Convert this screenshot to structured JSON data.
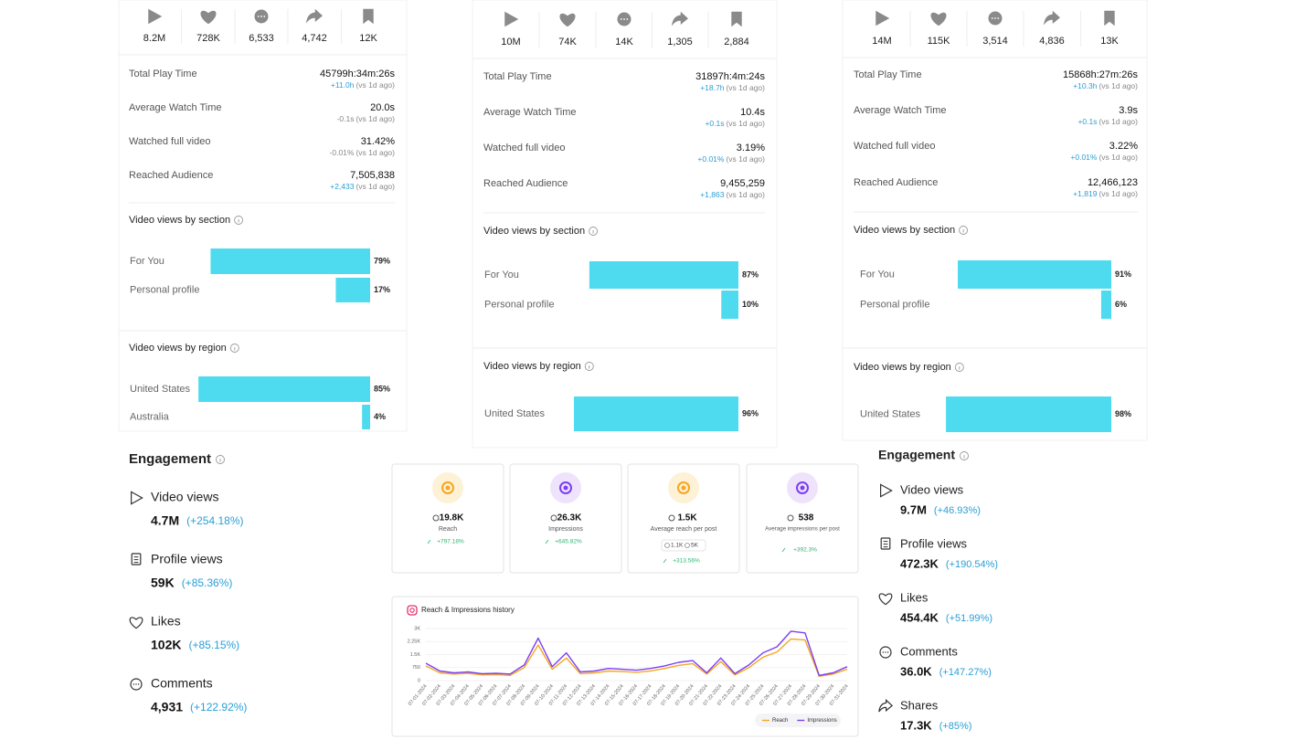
{
  "panels": [
    {
      "counts": [
        "8.2M",
        "728K",
        "6,533",
        "4,742",
        "12K"
      ],
      "metrics": [
        {
          "label": "Total Play Time",
          "value": "45799h:34m:26s",
          "change": "+11.0h",
          "note": "(vs 1d ago)"
        },
        {
          "label": "Average Watch Time",
          "value": "20.0s",
          "change": "-0.1s",
          "note": "(vs 1d ago)"
        },
        {
          "label": "Watched full video",
          "value": "31.42%",
          "change": "-0.01%",
          "note": "(vs 1d ago)"
        },
        {
          "label": "Reached Audience",
          "value": "7,505,838",
          "change": "+2,433",
          "note": "(vs 1d ago)"
        }
      ],
      "section": {
        "title": "Video views by section",
        "categories": [
          "For You",
          "Personal profile"
        ],
        "values": [
          79,
          17
        ],
        "value_labels": [
          "79%",
          "17%"
        ]
      },
      "region": {
        "title": "Video views by region",
        "categories": [
          "United States",
          "Australia"
        ],
        "values": [
          85,
          4
        ],
        "value_labels": [
          "85%",
          "4%"
        ]
      }
    },
    {
      "counts": [
        "10M",
        "74K",
        "14K",
        "1,305",
        "2,884"
      ],
      "metrics": [
        {
          "label": "Total Play Time",
          "value": "31897h:4m:24s",
          "change": "+18.7h",
          "note": "(vs 1d ago)"
        },
        {
          "label": "Average Watch Time",
          "value": "10.4s",
          "change": "+0.1s",
          "note": "(vs 1d ago)"
        },
        {
          "label": "Watched full video",
          "value": "3.19%",
          "change": "+0.01%",
          "note": "(vs 1d ago)"
        },
        {
          "label": "Reached Audience",
          "value": "9,455,259",
          "change": "+1,863",
          "note": "(vs 1d ago)"
        }
      ],
      "section": {
        "title": "Video views by section",
        "categories": [
          "For You",
          "Personal profile"
        ],
        "values": [
          87,
          10
        ],
        "value_labels": [
          "87%",
          "10%"
        ]
      },
      "region": {
        "title": "Video views by region",
        "categories": [
          "United States"
        ],
        "values": [
          96
        ],
        "value_labels": [
          "96%"
        ]
      }
    },
    {
      "counts": [
        "14M",
        "115K",
        "3,514",
        "4,836",
        "13K"
      ],
      "metrics": [
        {
          "label": "Total Play Time",
          "value": "15868h:27m:26s",
          "change": "+10.3h",
          "note": "(vs 1d ago)"
        },
        {
          "label": "Average Watch Time",
          "value": "3.9s",
          "change": "+0.1s",
          "note": "(vs 1d ago)"
        },
        {
          "label": "Watched full video",
          "value": "3.22%",
          "change": "+0.01%",
          "note": "(vs 1d ago)"
        },
        {
          "label": "Reached Audience",
          "value": "12,466,123",
          "change": "+1,819",
          "note": "(vs 1d ago)"
        }
      ],
      "section": {
        "title": "Video views by section",
        "categories": [
          "For You",
          "Personal profile"
        ],
        "values": [
          91,
          6
        ],
        "value_labels": [
          "91%",
          "6%"
        ]
      },
      "region": {
        "title": "Video views by region",
        "categories": [
          "United States"
        ],
        "values": [
          98
        ],
        "value_labels": [
          "98%"
        ]
      }
    }
  ],
  "engagement_left": {
    "title": "Engagement",
    "items": [
      {
        "label": "Video views",
        "value": "4.7M",
        "change": "(+254.18%)"
      },
      {
        "label": "Profile views",
        "value": "59K",
        "change": "(+85.36%)"
      },
      {
        "label": "Likes",
        "value": "102K",
        "change": "(+85.15%)"
      },
      {
        "label": "Comments",
        "value": "4,931",
        "change": "(+122.92%)"
      }
    ]
  },
  "engagement_right": {
    "title": "Engagement",
    "items": [
      {
        "label": "Video views",
        "value": "9.7M",
        "change": "(+46.93%)"
      },
      {
        "label": "Profile views",
        "value": "472.3K",
        "change": "(+190.54%)"
      },
      {
        "label": "Likes",
        "value": "454.4K",
        "change": "(+51.99%)"
      },
      {
        "label": "Comments",
        "value": "36.0K",
        "change": "(+147.27%)"
      },
      {
        "label": "Shares",
        "value": "17.3K",
        "change": "(+85%)"
      }
    ]
  },
  "cards": [
    {
      "value": "19.8K",
      "label": "Reach",
      "change": "+797.18%"
    },
    {
      "value": "26.3K",
      "label": "Impressions",
      "change": "+645.82%"
    },
    {
      "value": "1.5K",
      "label": "Average reach per post",
      "sub": [
        "1.1K",
        "5K"
      ],
      "change": "+313.56%"
    },
    {
      "value": "538",
      "label": "Average impressions per post",
      "change": "+392.3%"
    }
  ],
  "chart_data": {
    "type": "line",
    "title": "Reach & Impressions history",
    "categories": [
      "07-01-2024",
      "07-02-2024",
      "07-03-2024",
      "07-04-2024",
      "07-05-2024",
      "07-06-2024",
      "07-07-2024",
      "07-08-2024",
      "07-09-2024",
      "07-10-2024",
      "07-11-2024",
      "07-12-2024",
      "07-13-2024",
      "07-14-2024",
      "07-15-2024",
      "07-16-2024",
      "07-17-2024",
      "07-18-2024",
      "07-19-2024",
      "07-20-2024",
      "07-21-2024",
      "07-22-2024",
      "07-23-2024",
      "07-24-2024",
      "07-25-2024",
      "07-26-2024",
      "07-27-2024",
      "07-28-2024",
      "07-29-2024",
      "07-30-2024",
      "07-31-2024"
    ],
    "series": [
      {
        "name": "Reach",
        "color": "#f5a623",
        "values": [
          850,
          450,
          380,
          420,
          330,
          350,
          300,
          750,
          2050,
          650,
          1300,
          400,
          450,
          550,
          520,
          480,
          560,
          700,
          880,
          980,
          380,
          1100,
          330,
          750,
          1350,
          1650,
          2400,
          2350,
          250,
          380,
          650
        ]
      },
      {
        "name": "Impressions",
        "color": "#7b3ff2",
        "values": [
          1000,
          550,
          450,
          500,
          400,
          420,
          380,
          900,
          2450,
          800,
          1600,
          500,
          550,
          700,
          650,
          600,
          700,
          850,
          1050,
          1150,
          450,
          1300,
          400,
          900,
          1600,
          1950,
          2850,
          2750,
          300,
          450,
          800
        ]
      }
    ],
    "ylim": [
      0,
      3000
    ],
    "yticks": [
      0,
      750,
      {
        "value": 1500,
        "label": "1.5K"
      },
      {
        "value": 2250,
        "label": "2.25K"
      },
      {
        "value": 3000,
        "label": "3K"
      }
    ],
    "grid": true,
    "legend": "bottom-right"
  }
}
